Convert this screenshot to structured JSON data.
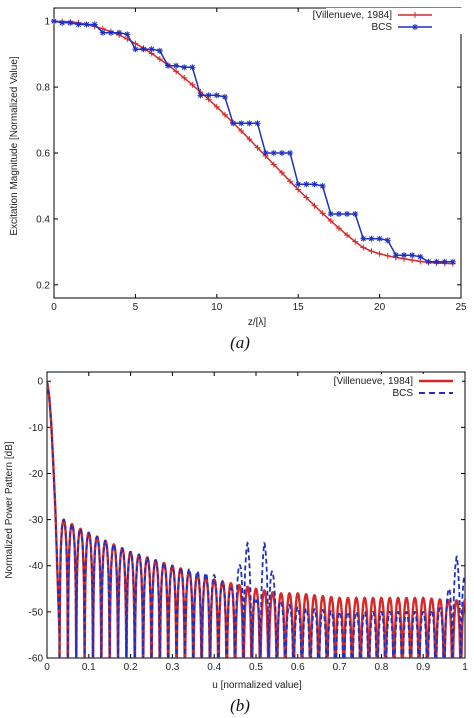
{
  "chart_data": [
    {
      "type": "line",
      "caption": "(a)",
      "xlabel": "z/[λ]",
      "ylabel": "Excitation Magnitude [Normalized Value]",
      "xlim": [
        0,
        25
      ],
      "ylim": [
        0.16,
        1.04
      ],
      "xticks": [
        0,
        5,
        10,
        15,
        20,
        25
      ],
      "yticks": [
        0.2,
        0.4,
        0.6,
        0.8,
        1
      ],
      "ytick_labels": [
        "0.2",
        "0.4",
        "0.6",
        "0.8",
        "1"
      ],
      "legend_position": "top-right",
      "series": [
        {
          "name": "[Villenueve, 1984]",
          "color": "#d62828",
          "marker": "plus",
          "x": [
            0,
            0.5,
            1,
            1.5,
            2,
            2.5,
            3,
            3.5,
            4,
            4.5,
            5,
            5.5,
            6,
            6.5,
            7,
            7.5,
            8,
            8.5,
            9,
            9.5,
            10,
            10.5,
            11,
            11.5,
            12,
            12.5,
            13,
            13.5,
            14,
            14.5,
            15,
            15.5,
            16,
            16.5,
            17,
            17.5,
            18,
            18.5,
            19,
            19.5,
            20,
            20.5,
            21,
            21.5,
            22,
            22.5,
            23,
            23.5,
            24,
            24.5
          ],
          "y": [
            1.0,
            0.999,
            0.998,
            0.995,
            0.99,
            0.984,
            0.977,
            0.968,
            0.958,
            0.946,
            0.932,
            0.918,
            0.902,
            0.885,
            0.867,
            0.848,
            0.828,
            0.807,
            0.785,
            0.763,
            0.74,
            0.716,
            0.692,
            0.667,
            0.642,
            0.616,
            0.591,
            0.565,
            0.54,
            0.514,
            0.489,
            0.465,
            0.44,
            0.417,
            0.394,
            0.372,
            0.351,
            0.331,
            0.313,
            0.302,
            0.294,
            0.288,
            0.283,
            0.279,
            0.275,
            0.271,
            0.268,
            0.266,
            0.265,
            0.264
          ]
        },
        {
          "name": "BCS",
          "color": "#1f2fbf",
          "marker": "asterisk",
          "x": [
            0,
            0.5,
            1,
            1.5,
            2,
            2.5,
            3,
            3.5,
            4,
            4.5,
            5,
            5.5,
            6,
            6.5,
            7,
            7.5,
            8,
            8.5,
            9,
            9.5,
            10,
            10.5,
            11,
            11.5,
            12,
            12.5,
            13,
            13.5,
            14,
            14.5,
            15,
            15.5,
            16,
            16.5,
            17,
            17.5,
            18,
            18.5,
            19,
            19.5,
            20,
            20.5,
            21,
            21.5,
            22,
            22.5,
            23,
            23.5,
            24,
            24.5
          ],
          "y": [
            1.0,
            0.995,
            0.995,
            0.99,
            0.99,
            0.99,
            0.965,
            0.965,
            0.965,
            0.96,
            0.915,
            0.915,
            0.915,
            0.91,
            0.865,
            0.865,
            0.86,
            0.86,
            0.775,
            0.775,
            0.775,
            0.77,
            0.69,
            0.69,
            0.69,
            0.69,
            0.6,
            0.6,
            0.6,
            0.6,
            0.505,
            0.505,
            0.505,
            0.5,
            0.415,
            0.415,
            0.415,
            0.415,
            0.34,
            0.34,
            0.34,
            0.335,
            0.29,
            0.29,
            0.29,
            0.285,
            0.27,
            0.27,
            0.27,
            0.27
          ]
        }
      ]
    },
    {
      "type": "line",
      "caption": "(b)",
      "xlabel": "u [normalized value]",
      "ylabel": "Normalized Power Pattern [dB]",
      "xlim": [
        0,
        1
      ],
      "ylim": [
        -60,
        2
      ],
      "xticks": [
        0,
        0.1,
        0.2,
        0.3,
        0.4,
        0.5,
        0.6,
        0.7,
        0.8,
        0.9,
        1
      ],
      "yticks": [
        -60,
        -50,
        -40,
        -30,
        -20,
        -10,
        0
      ],
      "legend_position": "top-right",
      "main_lobe": {
        "u": [
          0,
          0.005,
          0.01,
          0.015,
          0.02,
          0.025,
          0.03
        ],
        "db": [
          0,
          -3,
          -9,
          -18,
          -28,
          -42,
          -55
        ]
      },
      "series": [
        {
          "name": "[Villenueve, 1984]",
          "color": "#d62828",
          "style": "solid",
          "first_null": 0.03,
          "lobe_spacing": 0.02,
          "peak_envelope": {
            "u": [
              0.04,
              0.08,
              0.15,
              0.2,
              0.3,
              0.4,
              0.45,
              0.5,
              0.55,
              0.6,
              0.7,
              0.8,
              0.9,
              0.97
            ],
            "db": [
              -30,
              -32,
              -35,
              -37,
              -40,
              -43,
              -44,
              -45,
              -46,
              -46,
              -47,
              -47,
              -47,
              -47.5
            ]
          }
        },
        {
          "name": "BCS",
          "color": "#1f2fbf",
          "style": "dashed",
          "first_null": 0.03,
          "lobe_spacing": 0.02,
          "peak_envelope": {
            "u": [
              0.04,
              0.08,
              0.15,
              0.2,
              0.3,
              0.4,
              0.44,
              0.48,
              0.5,
              0.52,
              0.56,
              0.6,
              0.7,
              0.8,
              0.9,
              0.95,
              0.98,
              0.99
            ],
            "db": [
              -30,
              -32,
              -35,
              -37,
              -40,
              -42,
              -45,
              -35,
              -48,
              -35,
              -48,
              -49,
              -50,
              -50,
              -50,
              -49,
              -38,
              -42
            ]
          }
        }
      ]
    }
  ]
}
